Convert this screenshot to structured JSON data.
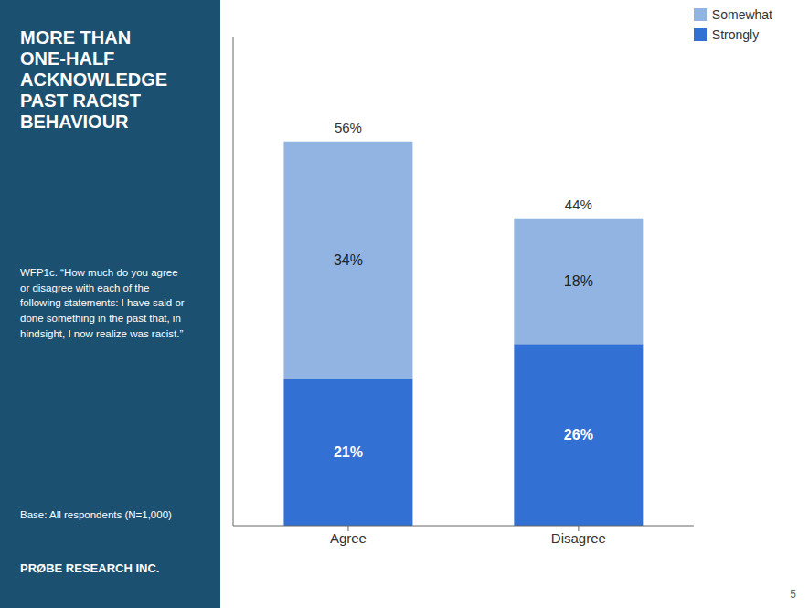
{
  "chart_data": {
    "type": "bar",
    "stacked": true,
    "title": "MORE THAN\nONE-HALF\nACKNOWLEDGE\nPAST RACIST\nBEHAVIOUR",
    "subtitle": "WFP1c. “How much do you agree\nor disagree with each of the\nfollowing statements: I have said or\ndone something in the past that, in\nhindsight, I now realize was racist.”",
    "annotations": [
      "Base: All respondents (N=1,000)",
      "PRØBE RESEARCH INC.",
      "5"
    ],
    "categories": [
      "Agree",
      "Disagree"
    ],
    "series": [
      {
        "name": "Strongly",
        "color": "#3370d4",
        "values": [
          21,
          26
        ],
        "value_labels": [
          "21%",
          "26%"
        ]
      },
      {
        "name": "Somewhat",
        "color": "#92b4e3",
        "values": [
          34,
          18
        ],
        "value_labels": [
          "34%",
          "18%"
        ]
      }
    ],
    "totals": [
      56,
      44
    ],
    "total_labels": [
      "56%",
      "44%"
    ],
    "ylim": [
      0,
      70
    ],
    "data_labels": true,
    "legend": "upper right",
    "grid": false,
    "tick_labels": "x"
  }
}
